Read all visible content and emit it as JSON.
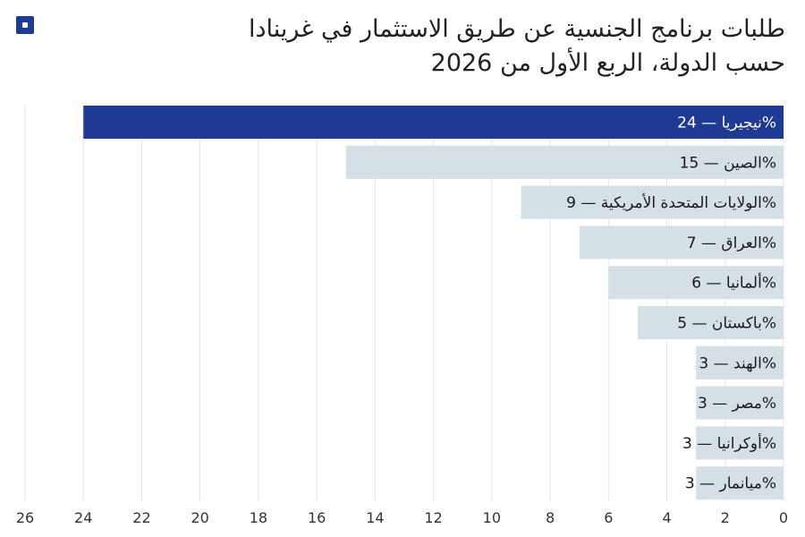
{
  "header": {
    "logo_icon": "square-logo-icon",
    "title_line1": "طلبات برنامج الجنسية عن طريق الاستثمار في غرينادا",
    "title_line2": "حسب الدولة، الربع الأول من 2026"
  },
  "colors": {
    "highlight": "#1f3a93",
    "bar": "#d5e0e6",
    "grid": "#e6e6e6"
  },
  "chart_data": {
    "type": "bar",
    "orientation": "horizontal",
    "title": "طلبات برنامج الجنسية عن طريق الاستثمار في غرينادا",
    "subtitle": "حسب الدولة، الربع الأول من 2026",
    "categories": [
      "نيجيريا",
      "الصين",
      "الولايات المتحدة الأمريكية",
      "العراق",
      "ألمانيا",
      "باكستان",
      "الهند",
      "مصر",
      "أوكرانيا",
      "ميانمار"
    ],
    "values": [
      24,
      15,
      9,
      7,
      6,
      5,
      3,
      3,
      3,
      3
    ],
    "labels": [
      "نيجيريا — 24%",
      "الصين — 15%",
      "الولايات المتحدة الأمريكية — 9%",
      "العراق — 7%",
      "ألمانيا — 6%",
      "باكستان — 5%",
      "الهند — 3%",
      "مصر — 3%",
      "أوكرانيا — 3%",
      "ميانمار — 3%"
    ],
    "highlighted": "نيجيريا",
    "xlim": [
      0,
      26
    ],
    "xticks": [
      0,
      2,
      4,
      6,
      8,
      10,
      12,
      14,
      16,
      18,
      20,
      22,
      24,
      26
    ],
    "x_direction": "right-to-left",
    "grid": true,
    "xlabel": "",
    "ylabel": ""
  }
}
